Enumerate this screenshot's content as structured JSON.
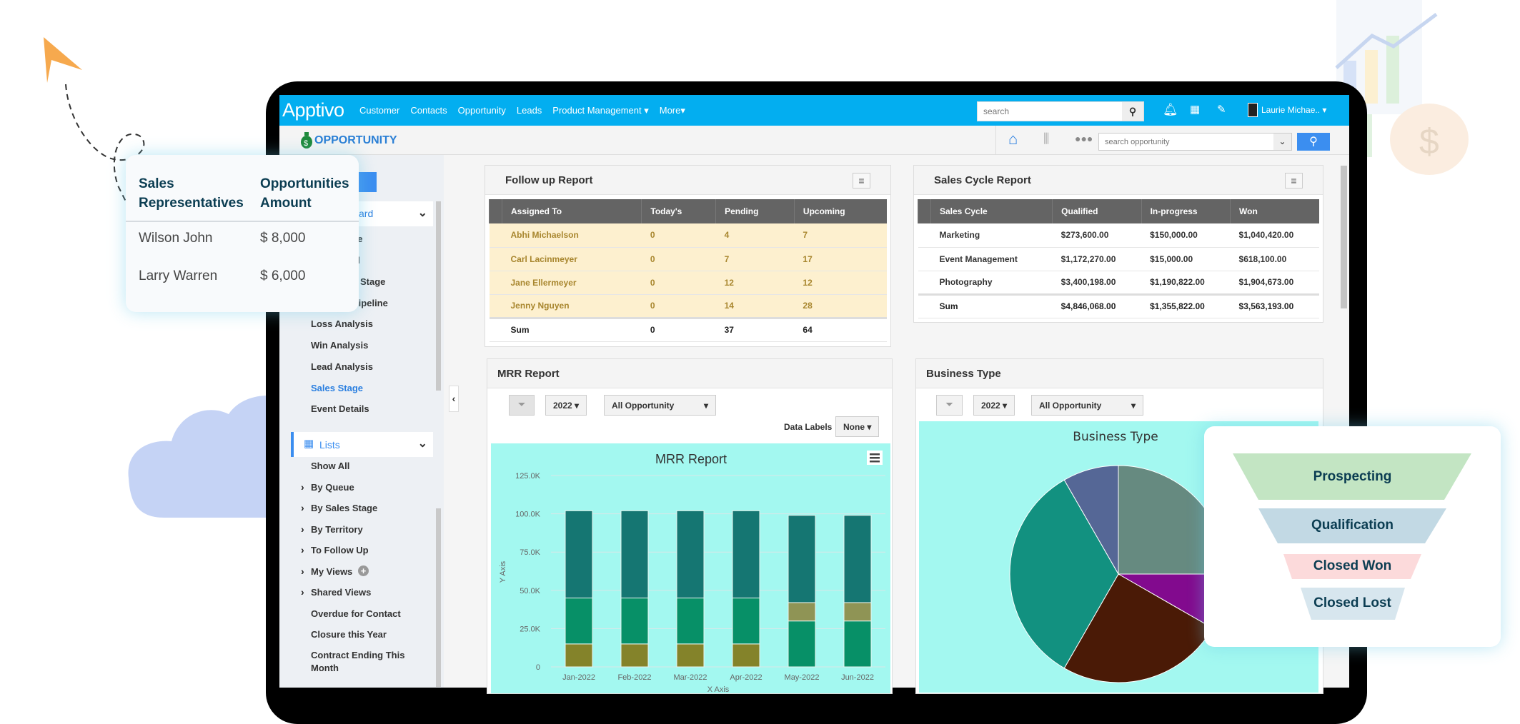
{
  "nav": {
    "logo": "Apptivo",
    "items": [
      "Customer",
      "Contacts",
      "Opportunity",
      "Leads",
      "Product Management ▾",
      "More▾"
    ],
    "search_placeholder": "search",
    "user": "Laurie Michae.. ▾"
  },
  "subheader": {
    "title": "OPPORTUNITY",
    "search_placeholder": "search opportunity"
  },
  "sidebar": {
    "dashboard_fragment": "ard",
    "fragments": [
      "ce",
      "el",
      "Stage",
      "Pipeline"
    ],
    "reports": [
      "Loss Analysis",
      "Win Analysis",
      "Lead Analysis",
      "Sales Stage",
      "Event Details"
    ],
    "active": "Sales Stage",
    "lists_label": "Lists",
    "lists": [
      {
        "label": "Show All",
        "chevron": false
      },
      {
        "label": "By Queue",
        "chevron": true
      },
      {
        "label": "By Sales Stage",
        "chevron": true
      },
      {
        "label": "By Territory",
        "chevron": true
      },
      {
        "label": "To Follow Up",
        "chevron": true
      },
      {
        "label": "My Views",
        "chevron": true
      },
      {
        "label": "Shared Views",
        "chevron": true
      },
      {
        "label": "Overdue for Contact",
        "chevron": false
      },
      {
        "label": "Closure this Year",
        "chevron": false
      },
      {
        "label": "Contract Ending This Month",
        "chevron": false
      }
    ]
  },
  "followup": {
    "title": "Follow up Report",
    "headers": [
      "Assigned To",
      "Today's",
      "Pending",
      "Upcoming"
    ],
    "rows": [
      [
        "Abhi Michaelson",
        "0",
        "4",
        "7"
      ],
      [
        "Carl Lacinmeyer",
        "0",
        "7",
        "17"
      ],
      [
        "Jane Ellermeyer",
        "0",
        "12",
        "12"
      ],
      [
        "Jenny Nguyen",
        "0",
        "14",
        "28"
      ]
    ],
    "sum": [
      "Sum",
      "0",
      "37",
      "64"
    ]
  },
  "salescycle": {
    "title": "Sales Cycle Report",
    "headers": [
      "Sales Cycle",
      "Qualified",
      "In-progress",
      "Won"
    ],
    "rows": [
      [
        "Marketing",
        "$273,600.00",
        "$150,000.00",
        "$1,040,420.00"
      ],
      [
        "Event Management",
        "$1,172,270.00",
        "$15,000.00",
        "$618,100.00"
      ],
      [
        "Photography",
        "$3,400,198.00",
        "$1,190,822.00",
        "$1,904,673.00"
      ]
    ],
    "sum": [
      "Sum",
      "$4,846,068.00",
      "$1,355,822.00",
      "$3,563,193.00"
    ]
  },
  "mrr": {
    "panel_title": "MRR Report",
    "year": "2022 ▾",
    "filter": "All Opportunity",
    "data_labels": "Data Labels",
    "data_labels_value": "None ▾"
  },
  "business": {
    "panel_title": "Business Type",
    "year": "2022 ▾",
    "filter": "All Opportunity"
  },
  "popup": {
    "headers": [
      "Sales Representatives",
      "Opportunities Amount"
    ],
    "rows": [
      [
        "Wilson John",
        "$ 8,000"
      ],
      [
        "Larry Warren",
        "$ 6,000"
      ]
    ]
  },
  "funnel": [
    "Prospecting",
    "Qualification",
    "Closed Won",
    "Closed Lost"
  ],
  "chart_data": [
    {
      "type": "bar",
      "stacked": true,
      "title": "MRR Report",
      "xlabel": "X Axis",
      "ylabel": "Y Axis",
      "ylim": [
        0,
        125000
      ],
      "yticks": [
        "0",
        "25.0K",
        "50.0K",
        "75.0K",
        "100.0K",
        "125.0K"
      ],
      "categories": [
        "Jan-2022",
        "Feb-2022",
        "Mar-2022",
        "Apr-2022",
        "May-2022",
        "Jun-2022"
      ],
      "series": [
        {
          "color": "#84832a",
          "values": [
            15000,
            15000,
            15000,
            15000,
            0,
            0
          ]
        },
        {
          "color": "#079067",
          "values": [
            30000,
            30000,
            30000,
            30000,
            30000,
            30000
          ]
        },
        {
          "color": "#8f9455",
          "values": [
            0,
            0,
            0,
            0,
            12000,
            12000
          ]
        },
        {
          "color": "#157672",
          "values": [
            57000,
            57000,
            57000,
            57000,
            57000,
            57000
          ]
        }
      ]
    },
    {
      "type": "pie",
      "title": "Business Type",
      "slices": [
        {
          "value": 25,
          "color": "#668a80"
        },
        {
          "value": 8.3,
          "color": "#820a8e"
        },
        {
          "value": 25,
          "color": "#4a1a06"
        },
        {
          "value": 33.4,
          "color": "#129180"
        },
        {
          "value": 8.3,
          "color": "#556796"
        }
      ]
    }
  ]
}
